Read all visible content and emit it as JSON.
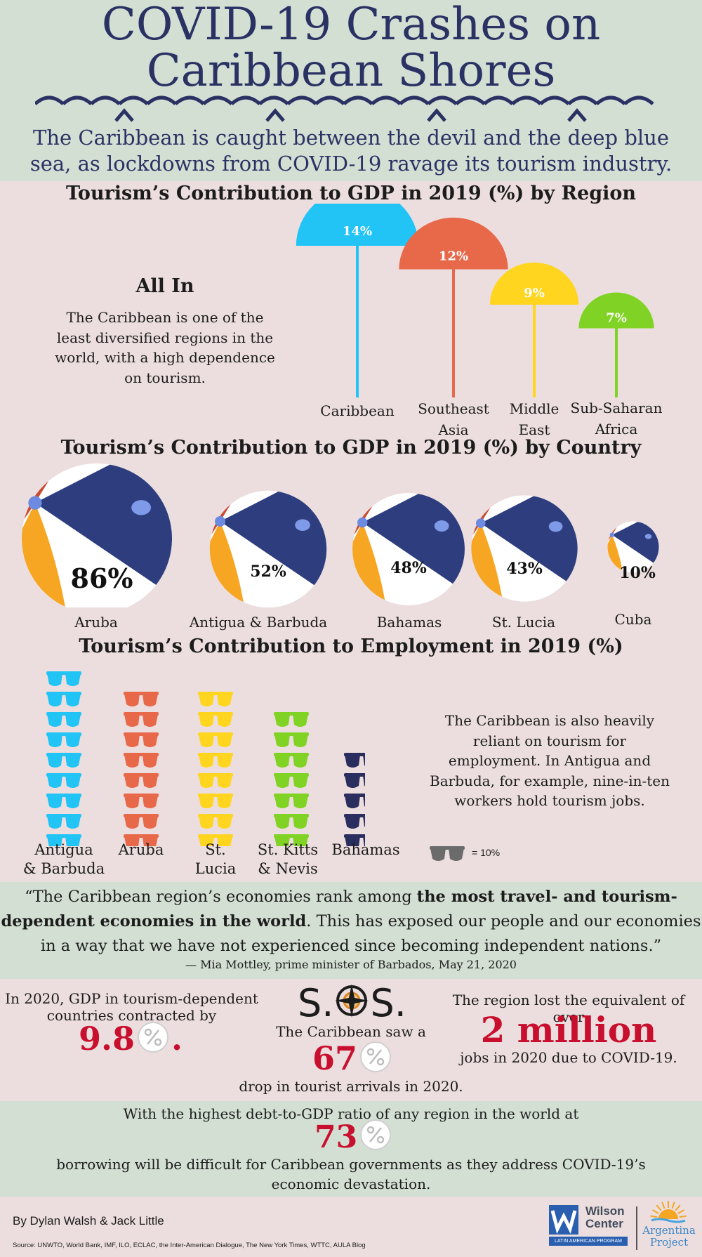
{
  "header": {
    "title_line1": "COVID-19 Crashes on",
    "title_line2": "Caribbean Shores",
    "subtitle": "The Caribbean is caught between the devil and the deep blue sea, as lockdowns from COVID-19 ravage its tourism industry."
  },
  "region_section": {
    "title": "Tourism’s Contribution to GDP in 2019 (%) by Region",
    "aside_title": "All In",
    "aside_text": "The Caribbean is one of the least diversified regions in the world, with a high dependence on tourism."
  },
  "country_section": {
    "title": "Tourism’s Contribution to GDP in 2019 (%) by Country"
  },
  "employment_section": {
    "title": "Tourism’s Contribution to Employment in 2019 (%)",
    "aside_text": "The Caribbean is also heavily reliant on tourism for employment. In Antigua and Barbuda, for example, nine-in-ten workers hold tourism jobs.",
    "legend_label": "= 10%"
  },
  "chart_data": [
    {
      "type": "bar",
      "title": "Tourism’s Contribution to GDP in 2019 (%) by Region",
      "categories": [
        "Caribbean",
        "Southeast Asia",
        "Middle East",
        "Sub-Saharan Africa"
      ],
      "values": [
        14,
        12,
        9,
        7
      ],
      "value_labels": [
        "14%",
        "12%",
        "9%",
        "7%"
      ],
      "colors": [
        "#22c4f6",
        "#e8684a",
        "#ffd51f",
        "#80d324"
      ]
    },
    {
      "type": "bar",
      "title": "Tourism’s Contribution to GDP in 2019 (%) by Country",
      "categories": [
        "Aruba",
        "Antigua & Barbuda",
        "Bahamas",
        "St. Lucia",
        "Cuba"
      ],
      "values": [
        86,
        52,
        48,
        43,
        10
      ],
      "value_labels": [
        "86%",
        "52%",
        "48%",
        "43%",
        "10%"
      ]
    },
    {
      "type": "bar",
      "title": "Tourism’s Contribution to Employment in 2019 (%)",
      "categories": [
        "Antigua & Barbuda",
        "Aruba",
        "St. Lucia",
        "St. Kitts & Nevis",
        "Bahamas"
      ],
      "label_lines": [
        [
          "Antigua",
          "& Barbuda"
        ],
        [
          "Aruba"
        ],
        [
          "St.",
          "Lucia"
        ],
        [
          "St. Kitts",
          "& Nevis"
        ],
        [
          "Bahamas"
        ]
      ],
      "values": [
        90,
        80,
        80,
        70,
        50
      ],
      "unit": "10% per glasses icon",
      "colors": [
        "#22c4f6",
        "#e8684a",
        "#ffd51f",
        "#80d324",
        "#2a2e5e"
      ]
    }
  ],
  "quote": {
    "part1": "“The Caribbean region’s economies rank among ",
    "bold": "the most travel- and tourism-dependent economies in the world",
    "part2": ". This has exposed our people and our economies in a way that we have not experienced since becoming independent nations.”",
    "attribution": "— Mia Mottley, prime minister of Barbados, May 21, 2020"
  },
  "stats": {
    "gdp_text": "In 2020, GDP in tourism-dependent countries contracted by",
    "gdp_value": "9.8",
    "gdp_tail": ".",
    "sos_s1": "S.",
    "sos_s2": "S.",
    "arrivals_text": "The Caribbean saw a",
    "arrivals_value": "67",
    "arrivals_tail": "drop in tourist arrivals in 2020.",
    "jobs_text": "The region lost the equivalent of over",
    "jobs_value": "2 million",
    "jobs_tail": "jobs in 2020 due to COVID-19."
  },
  "debt": {
    "text1": "With the highest debt-to-GDP ratio of any region in the world at",
    "value": "73",
    "text2": "borrowing will be difficult for Caribbean governments as they address COVID-19’s economic devastation."
  },
  "footer": {
    "authors": "By Dylan Walsh & Jack Little",
    "source": "Source: UNWTO,  World Bank, IMF, ILO, ECLAC, the Inter-American Dialogue, The New York Times, WTTC, AULA Blog",
    "wilson_line1": "Wilson",
    "wilson_line2": "Center",
    "wilson_program": "LATIN AMERICAN PROGRAM",
    "argentina_line1": "Argentina",
    "argentina_line2": "Project"
  },
  "colors": {
    "navy": "#2a3264",
    "red": "#c8102e",
    "green_bg": "#d3dfd3",
    "pink_bg": "#ecdede"
  }
}
